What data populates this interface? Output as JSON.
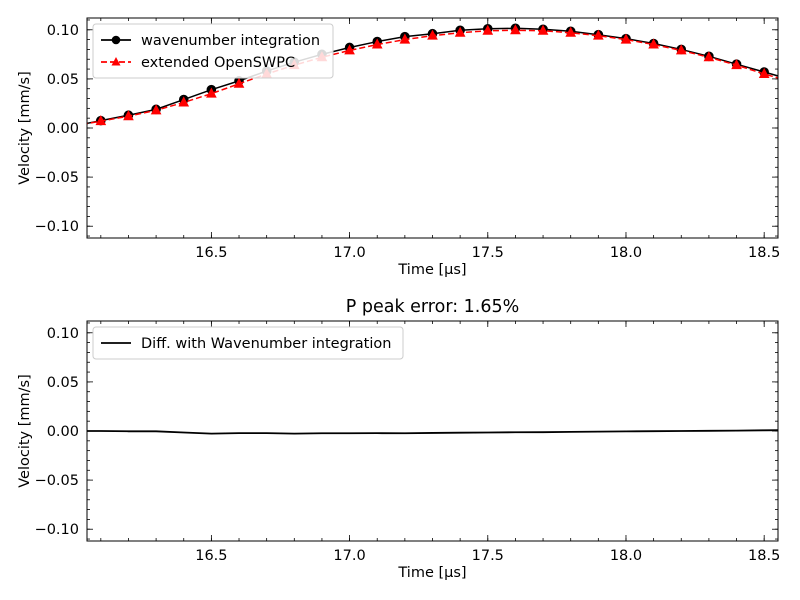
{
  "chart_data": [
    {
      "type": "line",
      "title": "",
      "xlabel": "Time [µs]",
      "ylabel": "Velocity [mm/s]",
      "xlim": [
        16.05,
        18.55
      ],
      "ylim": [
        -0.112,
        0.112
      ],
      "xticks": [
        16.5,
        17.0,
        17.5,
        18.0,
        18.5
      ],
      "xtick_labels": [
        "16.5",
        "17.0",
        "17.5",
        "18.0",
        "18.5"
      ],
      "yticks": [
        -0.1,
        -0.05,
        0.0,
        0.05,
        0.1
      ],
      "ytick_labels": [
        "−0.10",
        "−0.05",
        "0.00",
        "0.05",
        "0.10"
      ],
      "legend_position": "top-left",
      "grid": false,
      "series": [
        {
          "name": "wavenumber integration",
          "color": "#000000",
          "line_style": "solid",
          "marker": "circle",
          "x": [
            16.0,
            16.1,
            16.2,
            16.3,
            16.4,
            16.5,
            16.6,
            16.7,
            16.8,
            16.9,
            17.0,
            17.1,
            17.2,
            17.3,
            17.4,
            17.5,
            17.6,
            17.7,
            17.8,
            17.9,
            18.0,
            18.1,
            18.2,
            18.3,
            18.4,
            18.5,
            18.6
          ],
          "values": [
            0.002,
            0.0075,
            0.013,
            0.019,
            0.029,
            0.039,
            0.048,
            0.058,
            0.067,
            0.075,
            0.082,
            0.088,
            0.093,
            0.096,
            0.0995,
            0.101,
            0.1015,
            0.1005,
            0.0985,
            0.095,
            0.091,
            0.086,
            0.08,
            0.073,
            0.065,
            0.057,
            0.049
          ]
        },
        {
          "name": "extended OpenSWPC",
          "color": "#ff0000",
          "line_style": "dashed",
          "marker": "triangle",
          "x": [
            16.0,
            16.1,
            16.2,
            16.3,
            16.4,
            16.5,
            16.6,
            16.7,
            16.8,
            16.9,
            17.0,
            17.1,
            17.2,
            17.3,
            17.4,
            17.5,
            17.6,
            17.7,
            17.8,
            17.9,
            18.0,
            18.1,
            18.2,
            18.3,
            18.4,
            18.5,
            18.6
          ],
          "values": [
            0.002,
            0.007,
            0.012,
            0.018,
            0.026,
            0.035,
            0.045,
            0.055,
            0.064,
            0.072,
            0.079,
            0.085,
            0.09,
            0.094,
            0.097,
            0.099,
            0.0995,
            0.099,
            0.097,
            0.094,
            0.09,
            0.085,
            0.079,
            0.072,
            0.064,
            0.055,
            0.047
          ]
        }
      ]
    },
    {
      "type": "line",
      "title": "P peak error: 1.65%",
      "xlabel": "Time [µs]",
      "ylabel": "Velocity [mm/s]",
      "xlim": [
        16.05,
        18.55
      ],
      "ylim": [
        -0.112,
        0.112
      ],
      "xticks": [
        16.5,
        17.0,
        17.5,
        18.0,
        18.5
      ],
      "xtick_labels": [
        "16.5",
        "17.0",
        "17.5",
        "18.0",
        "18.5"
      ],
      "yticks": [
        -0.1,
        -0.05,
        0.0,
        0.05,
        0.1
      ],
      "ytick_labels": [
        "−0.10",
        "−0.05",
        "0.00",
        "0.05",
        "0.10"
      ],
      "legend_position": "top-left",
      "grid": false,
      "series": [
        {
          "name": "Diff. with Wavenumber integration",
          "color": "#000000",
          "line_style": "solid",
          "marker": "none",
          "x": [
            16.0,
            16.1,
            16.2,
            16.3,
            16.4,
            16.5,
            16.6,
            16.7,
            16.8,
            16.9,
            17.0,
            17.1,
            17.2,
            17.3,
            17.4,
            17.5,
            17.6,
            17.7,
            17.8,
            17.9,
            18.0,
            18.1,
            18.2,
            18.3,
            18.4,
            18.5,
            18.6
          ],
          "values": [
            0.0,
            0.0,
            -0.0003,
            -0.0003,
            -0.0015,
            -0.0027,
            -0.0022,
            -0.0022,
            -0.0027,
            -0.0023,
            -0.0023,
            -0.0022,
            -0.0023,
            -0.002,
            -0.0017,
            -0.0015,
            -0.0013,
            -0.0012,
            -0.0009,
            -0.0006,
            -0.0004,
            -0.0002,
            0.0,
            0.0002,
            0.0004,
            0.0007,
            0.001
          ]
        }
      ]
    }
  ]
}
